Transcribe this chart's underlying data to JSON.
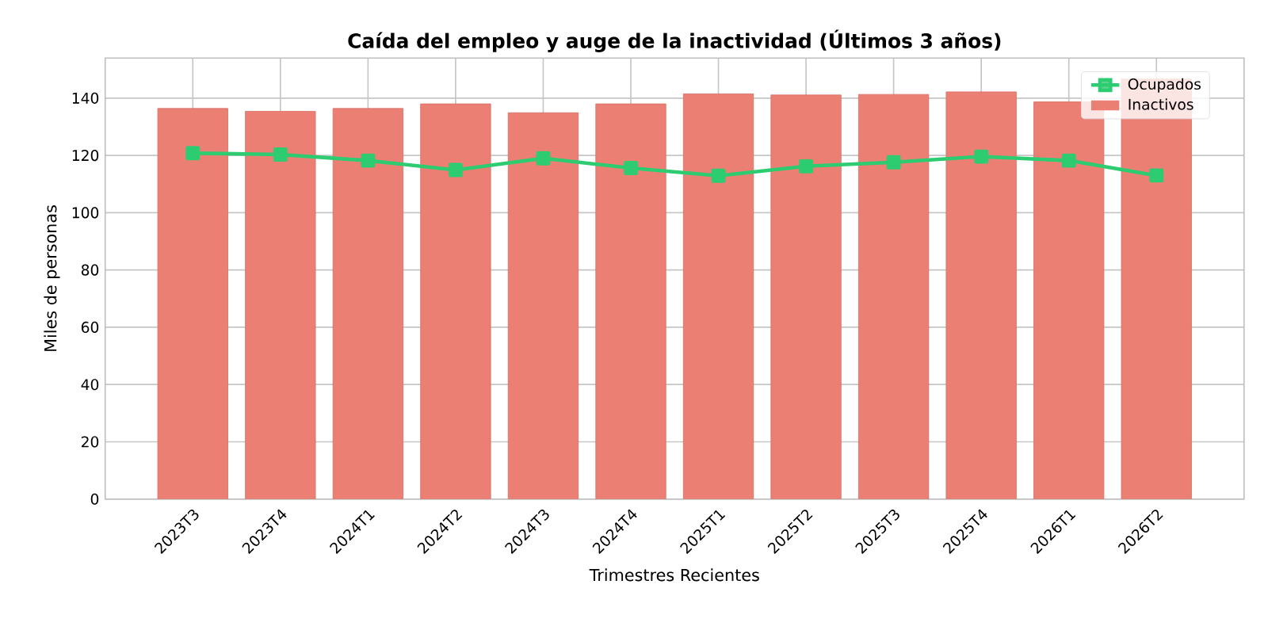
{
  "chart_data": {
    "type": "bar",
    "title": "Caída del empleo y auge de la inactividad (Últimos 3 años)",
    "xlabel": "Trimestres Recientes",
    "ylabel": "Miles de personas",
    "categories": [
      "2023T3",
      "2023T4",
      "2024T1",
      "2024T2",
      "2024T3",
      "2024T4",
      "2025T1",
      "2025T2",
      "2025T3",
      "2025T4",
      "2026T1",
      "2026T2"
    ],
    "series": [
      {
        "name": "Ocupados",
        "type": "line",
        "color": "#2ecc71",
        "marker": "square",
        "values": [
          120.8,
          120.3,
          118.2,
          114.9,
          119.0,
          115.6,
          112.9,
          116.2,
          117.6,
          119.6,
          118.2,
          113.0
        ]
      },
      {
        "name": "Inactivos",
        "type": "bar",
        "color": "#ec7f73",
        "values": [
          136.4,
          135.4,
          136.4,
          138.0,
          134.9,
          138.0,
          141.5,
          141.1,
          141.3,
          142.2,
          138.7,
          146.7
        ]
      }
    ],
    "ylim": [
      0,
      154
    ],
    "yticks": [
      0,
      20,
      40,
      60,
      80,
      100,
      120,
      140
    ],
    "grid": true,
    "legend": "top right"
  }
}
